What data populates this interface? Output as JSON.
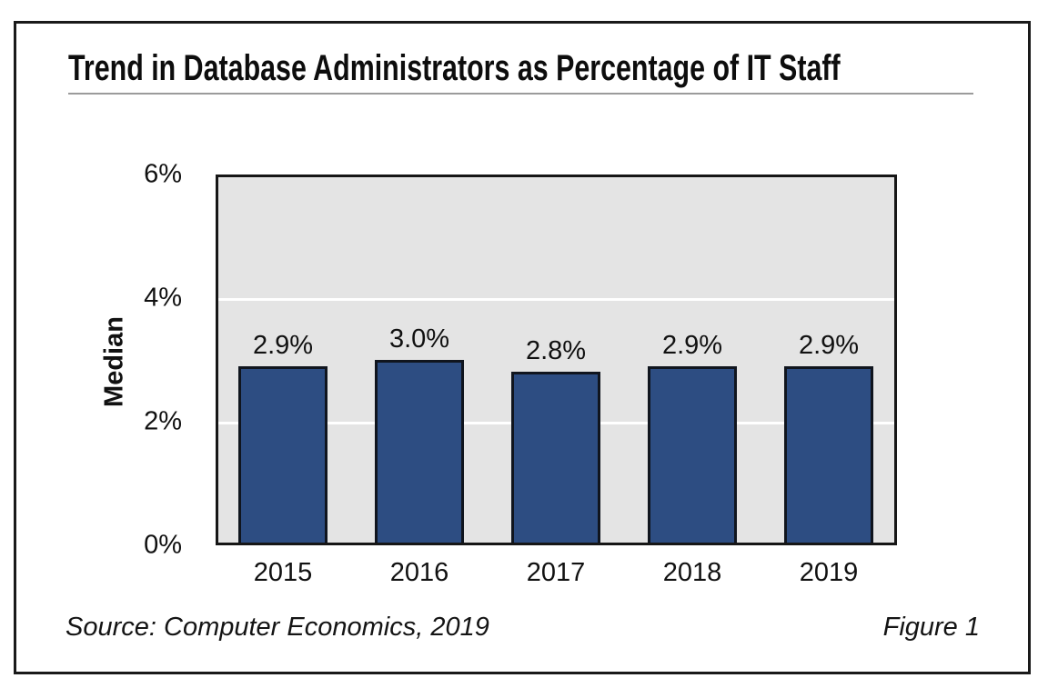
{
  "figure": {
    "title": "Trend in Database Administrators as Percentage of IT Staff",
    "source_note": "Source: Computer Economics, 2019",
    "figure_label": "Figure 1"
  },
  "chart_data": {
    "type": "bar",
    "title": "Trend in Database Administrators as Percentage of IT Staff",
    "categories": [
      "2015",
      "2016",
      "2017",
      "2018",
      "2019"
    ],
    "values": [
      2.9,
      3.0,
      2.8,
      2.9,
      2.9
    ],
    "value_labels": [
      "2.9%",
      "3.0%",
      "2.8%",
      "2.9%",
      "2.9%"
    ],
    "ylabel": "Median",
    "xlabel": "",
    "ylim": [
      0,
      6
    ],
    "ytick_labels": [
      "6%",
      "4%",
      "2%",
      "0%"
    ],
    "ytick_values": [
      6,
      4,
      2,
      0
    ],
    "gridlines_at": [
      4,
      2
    ],
    "grid_color": "#ffffff",
    "legend": "none",
    "colors": {
      "bar_fill": "#2d4d82",
      "bar_border": "#10151e",
      "plot_background": "#e4e4e4",
      "plot_border": "#161616",
      "card_border": "#1a1a1a",
      "title_rule": "#9b9b9b",
      "text": "#111111"
    }
  }
}
